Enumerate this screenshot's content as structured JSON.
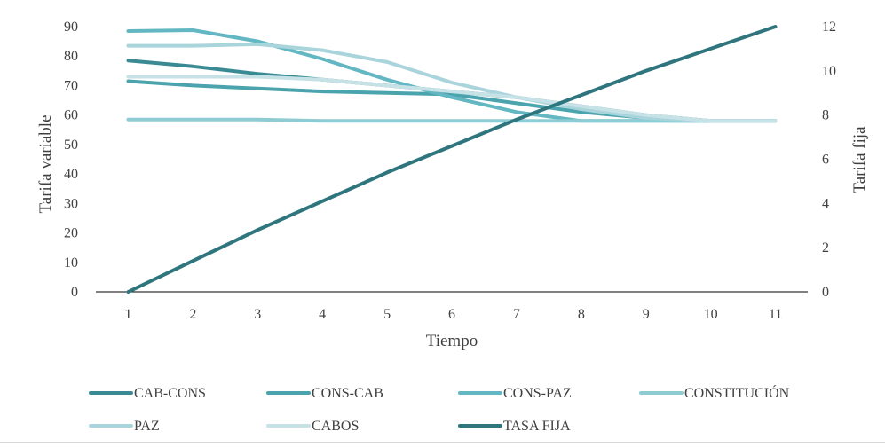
{
  "chart_data": {
    "type": "line",
    "xlabel": "Tiempo",
    "ylabel_left": "Tarifa variable",
    "ylabel_right": "Tarifa fija",
    "categories": [
      "1",
      "2",
      "3",
      "4",
      "5",
      "6",
      "7",
      "8",
      "9",
      "10",
      "11"
    ],
    "y_left": {
      "min": 0,
      "max": 90,
      "ticks": [
        "0",
        "10",
        "20",
        "30",
        "40",
        "50",
        "60",
        "70",
        "80",
        "90"
      ]
    },
    "y_right": {
      "min": 0,
      "max": 12,
      "ticks": [
        "0",
        "2",
        "4",
        "6",
        "8",
        "10",
        "12"
      ]
    },
    "grid": false,
    "legend_position": "bottom",
    "series": [
      {
        "name": "CAB-CONS",
        "axis": "left",
        "color": "#3a8a93",
        "values": [
          78.5,
          76.5,
          74,
          72,
          70,
          68,
          66,
          63,
          60,
          58,
          58
        ]
      },
      {
        "name": "CONS-CAB",
        "axis": "left",
        "color": "#4aa3ad",
        "values": [
          71.5,
          70,
          69,
          68,
          67.5,
          67,
          64,
          61,
          59,
          58,
          58
        ]
      },
      {
        "name": "CONS-PAZ",
        "axis": "left",
        "color": "#63b7c2",
        "values": [
          88.5,
          88.8,
          85,
          79,
          72,
          66,
          61,
          58,
          58,
          58,
          58
        ]
      },
      {
        "name": "CONSTITUCIÓN",
        "axis": "left",
        "color": "#8ecbd2",
        "values": [
          58.5,
          58.5,
          58.5,
          58,
          58,
          58,
          58,
          58,
          58,
          58,
          58
        ]
      },
      {
        "name": "PAZ",
        "axis": "left",
        "color": "#a9d4dc",
        "values": [
          83.5,
          83.5,
          84,
          82,
          78,
          71,
          66,
          62,
          59,
          58,
          58
        ]
      },
      {
        "name": "CABOS",
        "axis": "left",
        "color": "#c7e2e7",
        "values": [
          73,
          73,
          73,
          72,
          70,
          68,
          66,
          63,
          60,
          58,
          58
        ]
      },
      {
        "name": "TASA FIJA",
        "axis": "right",
        "color": "#2e757d",
        "values": [
          0,
          1.4,
          2.8,
          4.1,
          5.4,
          6.6,
          7.8,
          8.9,
          10,
          11,
          12
        ]
      }
    ]
  }
}
